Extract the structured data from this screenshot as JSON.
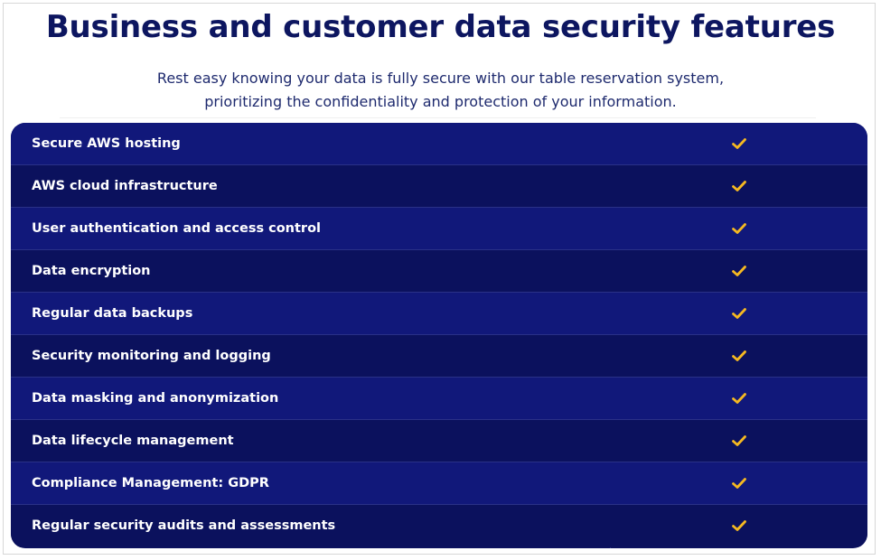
{
  "header": {
    "title": "Business and customer data security features",
    "subtitle_line1": "Rest easy knowing your data is fully secure with our table reservation system,",
    "subtitle_line2": "prioritizing the confidentiality and protection of your information."
  },
  "features": [
    {
      "label": "Secure AWS hosting",
      "checked": true
    },
    {
      "label": "AWS cloud infrastructure",
      "checked": true
    },
    {
      "label": "User authentication and access control",
      "checked": true
    },
    {
      "label": "Data encryption",
      "checked": true
    },
    {
      "label": "Regular data backups",
      "checked": true
    },
    {
      "label": "Security monitoring and logging",
      "checked": true
    },
    {
      "label": "Data masking and anonymization",
      "checked": true
    },
    {
      "label": "Data lifecycle management",
      "checked": true
    },
    {
      "label": "Compliance Management: GDPR",
      "checked": true
    },
    {
      "label": "Regular security audits and assessments",
      "checked": true
    }
  ],
  "colors": {
    "title": "#0d1660",
    "table_bg": "#0c1260",
    "row_alt": "#11187a",
    "check": "#f6b921",
    "text_on_table": "#ffffff"
  },
  "icons": {
    "check": "checkmark-icon"
  }
}
